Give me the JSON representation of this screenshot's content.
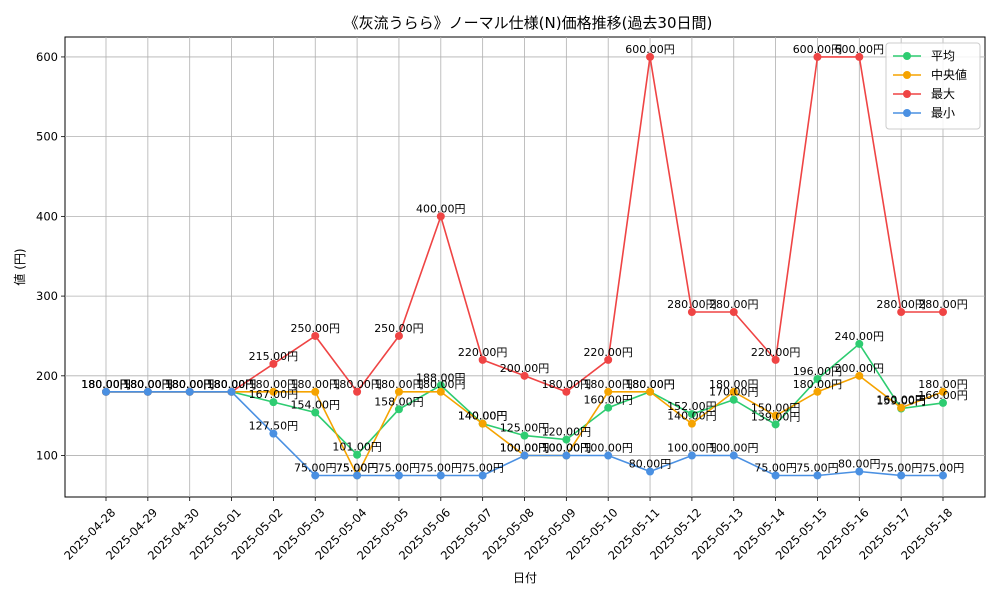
{
  "chart_data": {
    "type": "line",
    "title": "《灰流うらら》ノーマル仕様(N)価格推移(過去30日間)",
    "xlabel": "日付",
    "ylabel": "値 (円)",
    "ylim": [
      48,
      625
    ],
    "yticks": [
      100,
      200,
      300,
      400,
      500,
      600
    ],
    "grid": true,
    "legend_position": "top-right",
    "value_suffix": "円",
    "categories": [
      "2025-04-28",
      "2025-04-29",
      "2025-04-30",
      "2025-05-01",
      "2025-05-02",
      "2025-05-03",
      "2025-05-04",
      "2025-05-05",
      "2025-05-06",
      "2025-05-07",
      "2025-05-08",
      "2025-05-09",
      "2025-05-10",
      "2025-05-11",
      "2025-05-12",
      "2025-05-13",
      "2025-05-14",
      "2025-05-15",
      "2025-05-16",
      "2025-05-17",
      "2025-05-18"
    ],
    "series": [
      {
        "name": "平均",
        "color": "#2ecc71",
        "values": [
          180,
          180,
          180,
          180,
          167,
          154,
          101,
          158,
          188,
          140,
          125,
          120,
          160,
          180,
          152,
          170,
          139,
          196,
          240,
          159,
          166
        ]
      },
      {
        "name": "中央値",
        "color": "#f5a300",
        "values": [
          180,
          180,
          180,
          180,
          180,
          180,
          75,
          180,
          180,
          140,
          100,
          100,
          180,
          180,
          140,
          180,
          150,
          180,
          200,
          160,
          180
        ]
      },
      {
        "name": "最大",
        "color": "#ef4444",
        "values": [
          180,
          180,
          180,
          180,
          215,
          250,
          180,
          250,
          400,
          220,
          200,
          180,
          220,
          600,
          280,
          280,
          220,
          600,
          600,
          280,
          280
        ]
      },
      {
        "name": "最小",
        "color": "#4a90e2",
        "values": [
          180,
          180,
          180,
          180,
          127.5,
          75,
          75,
          75,
          75,
          75,
          100,
          100,
          100,
          80,
          100,
          100,
          75,
          75,
          80,
          75,
          75
        ]
      }
    ]
  }
}
